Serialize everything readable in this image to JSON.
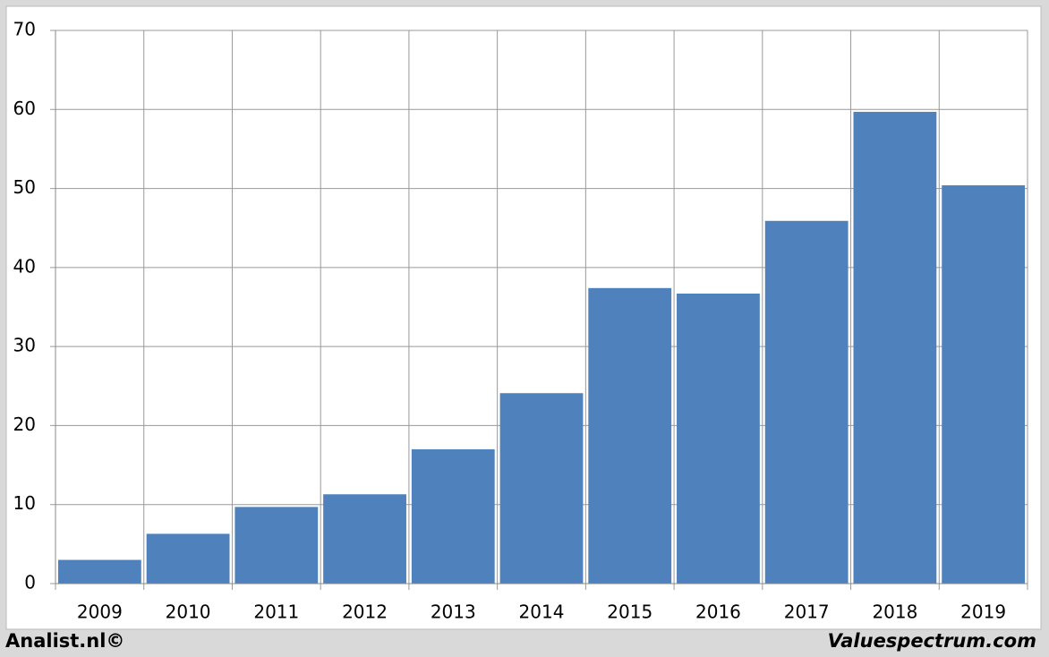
{
  "chart_data": {
    "type": "bar",
    "categories": [
      "2009",
      "2010",
      "2011",
      "2012",
      "2013",
      "2014",
      "2015",
      "2016",
      "2017",
      "2018",
      "2019"
    ],
    "values": [
      3.0,
      6.3,
      9.7,
      11.3,
      17.0,
      24.1,
      37.4,
      36.7,
      45.9,
      59.7,
      50.4
    ],
    "color": "#4f81bd",
    "ylim": [
      0,
      70
    ],
    "yticks": [
      0,
      10,
      20,
      30,
      40,
      50,
      60,
      70
    ],
    "grid": true,
    "footer_left": "Analist.nl©",
    "footer_right": "Valuespectrum.com"
  }
}
